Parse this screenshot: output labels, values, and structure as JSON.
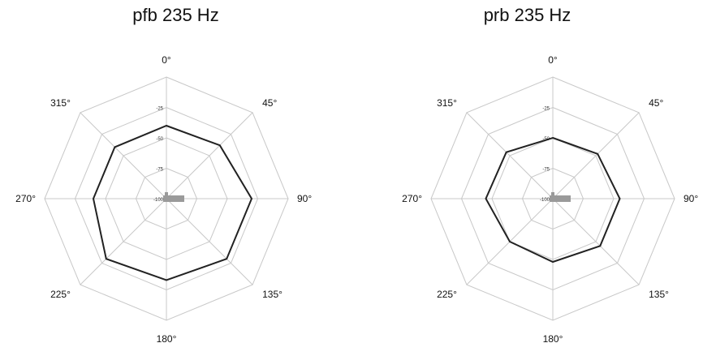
{
  "chart_data": [
    {
      "type": "radar",
      "title": "pfb 235 Hz",
      "angle_labels": [
        "0°",
        "45°",
        "90°",
        "135°",
        "180°",
        "225°",
        "270°",
        "315°"
      ],
      "angles_deg": [
        0,
        45,
        90,
        135,
        180,
        225,
        270,
        315
      ],
      "radial_ticks": [
        "-25",
        "-50",
        "-75",
        "-100"
      ],
      "radial_range": [
        -100,
        0
      ],
      "grid": true,
      "series": [
        {
          "values": [
            -40,
            -38,
            -30,
            -30,
            -33,
            -30,
            -40,
            -40
          ],
          "color": "#222222"
        }
      ]
    },
    {
      "type": "radar",
      "title": "prb 235 Hz",
      "angle_labels": [
        "0°",
        "45°",
        "90°",
        "135°",
        "180°",
        "225°",
        "270°",
        "315°"
      ],
      "angles_deg": [
        0,
        45,
        90,
        135,
        180,
        225,
        270,
        315
      ],
      "radial_ticks": [
        "-25",
        "-50",
        "-75",
        "-100"
      ],
      "radial_range": [
        -100,
        0
      ],
      "grid": true,
      "series": [
        {
          "values": [
            -50,
            -48,
            -45,
            -45,
            -48,
            -50,
            -45,
            -46
          ],
          "color": "#222222"
        }
      ]
    }
  ]
}
